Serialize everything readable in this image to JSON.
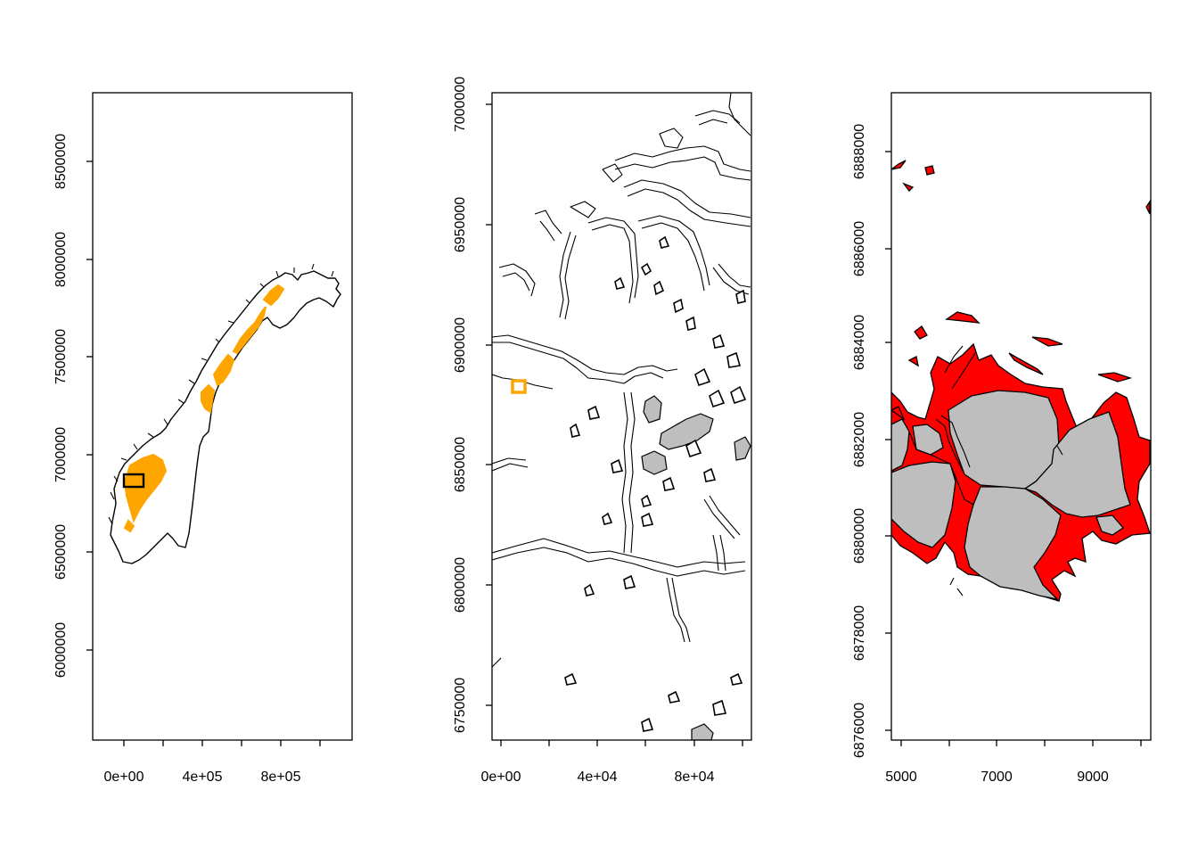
{
  "panels": [
    {
      "id": "norway-overview",
      "x_ticks": [
        "0e+00",
        "4e+05",
        "8e+05"
      ],
      "y_ticks": [
        "6000000",
        "6500000",
        "7000000",
        "7500000",
        "8000000",
        "8500000"
      ]
    },
    {
      "id": "region-zoom",
      "x_ticks": [
        "0e+00",
        "4e+04",
        "8e+04"
      ],
      "y_ticks": [
        "6750000",
        "6800000",
        "6850000",
        "6900000",
        "6950000",
        "7000000"
      ]
    },
    {
      "id": "detail-zoom",
      "x_ticks": [
        "5000",
        "7000",
        "9000"
      ],
      "y_ticks": [
        "6876000",
        "6878000",
        "6880000",
        "6882000",
        "6884000",
        "6886000",
        "6888000"
      ]
    }
  ],
  "colors": {
    "highlight_orange": "#FFA500",
    "area_grey": "#BEBEBE",
    "area_red": "#FF0000",
    "line": "#000000"
  }
}
